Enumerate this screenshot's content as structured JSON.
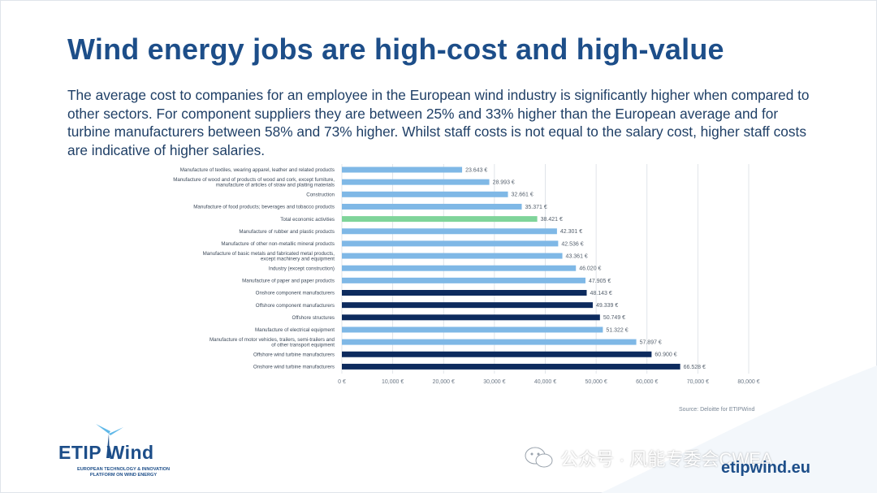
{
  "title": "Wind energy jobs are high-cost and high-value",
  "subtitle": "The average cost to companies for an employee in the European wind industry is significantly higher when compared to other sectors. For component suppliers they are between 25% and 33% higher than the European average and for turbine manufacturers between 58% and 73% higher. Whilst staff costs is not equal to the salary cost, higher staff costs are indicative of higher salaries.",
  "source": "Source: Deloitte for ETIPWind",
  "logo": {
    "wordmark": "ETIP Wind",
    "tagline_1": "EUROPEAN TECHNOLOGY & INNOVATION",
    "tagline_2": "PLATFORM ON WIND ENERGY"
  },
  "url": "etipwind.eu",
  "watermark": "公众号 · 风能专委会CWEA",
  "colors": {
    "title": "#1d4e89",
    "bar_other": "#7fb8e6",
    "bar_total": "#7fd49a",
    "bar_wind": "#0d2b5e"
  },
  "chart_data": {
    "type": "bar",
    "orientation": "horizontal",
    "categories": [
      "Manufacture of textiles, wearing apparel, leather and related products",
      "Manufacture of wood and of products of wood and cork, except furniture, manufacture of articles of straw and plaiting materials",
      "Construction",
      "Manufacture of food products; beverages and tobacco products",
      "Total economic activities",
      "Manufacture of rubber and plastic products",
      "Manufacture of other non-metallic mineral products",
      "Manufacture of basic metals and fabricated metal products, except machinery and equipment",
      "Industry (except construction)",
      "Manufacture of paper and paper products",
      "Onshore component manufacturers",
      "Offshore component manufacturers",
      "Offshore structures",
      "Manufacture of electrical equipment",
      "Manufacture of motor vehicles, trailers, semi-trailers and of other transport equipment",
      "Offshore wind turbine manufacturers",
      "Onshore wind turbine manufacturers"
    ],
    "label_lines": [
      [
        "Manufacture of textiles, wearing apparel, leather and related products"
      ],
      [
        "Manufacture of wood and of products of wood and cork, except furniture,",
        "manufacture of articles of straw and plaiting materials"
      ],
      [
        "Construction"
      ],
      [
        "Manufacture of food products; beverages and tobacco products"
      ],
      [
        "Total economic activities"
      ],
      [
        "Manufacture of rubber and plastic products"
      ],
      [
        "Manufacture of other non-metallic mineral products"
      ],
      [
        "Manufacture of basic metals and fabricated metal products,",
        "except machinery and equipment"
      ],
      [
        "Industry (except construction)"
      ],
      [
        "Manufacture of paper and paper products"
      ],
      [
        "Onshore component manufacturers"
      ],
      [
        "Offshore component manufacturers"
      ],
      [
        "Offshore structures"
      ],
      [
        "Manufacture of electrical equipment"
      ],
      [
        "Manufacture of motor vehicles, trailers, semi-trailers and",
        "of other transport equipment"
      ],
      [
        "Offshore wind turbine manufacturers"
      ],
      [
        "Onshore wind turbine manufacturers"
      ]
    ],
    "values": [
      23643,
      28993,
      32661,
      35371,
      38421,
      42301,
      42536,
      43361,
      46020,
      47905,
      48143,
      49339,
      50749,
      51322,
      57897,
      60900,
      66528
    ],
    "value_labels": [
      "23.643 €",
      "28.993 €",
      "32.661 €",
      "35.371 €",
      "38.421 €",
      "42.301 €",
      "42.536 €",
      "43.361 €",
      "46.020 €",
      "47.905 €",
      "48.143 €",
      "49.339 €",
      "50.749 €",
      "51.322 €",
      "57.897 €",
      "60.900 €",
      "66.528 €"
    ],
    "groups": [
      "other",
      "other",
      "other",
      "other",
      "total",
      "other",
      "other",
      "other",
      "other",
      "other",
      "wind",
      "wind",
      "wind",
      "other",
      "other",
      "wind",
      "wind"
    ],
    "xlim": [
      0,
      80000
    ],
    "xticks": [
      0,
      10000,
      20000,
      30000,
      40000,
      50000,
      60000,
      70000,
      80000
    ],
    "xtick_labels": [
      "0 €",
      "10,000 €",
      "20,000 €",
      "30,000 €",
      "40,000 €",
      "50,000 €",
      "60,000 €",
      "70,000 €",
      "80,000 €"
    ],
    "grid": "vertical",
    "legend": "none"
  }
}
